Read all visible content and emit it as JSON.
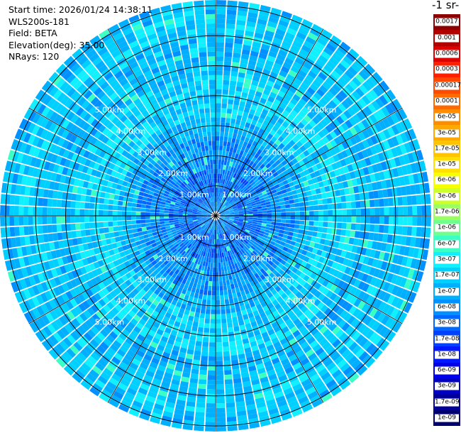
{
  "header": {
    "start_time": "Start time: 2026/01/24 14:38:11",
    "device": "WLS200s-181",
    "field": "Field: BETA",
    "elevation": "Elevation(deg): 35.00",
    "nrays": "NRays: 120"
  },
  "unit_label": "-1 sr-",
  "colorbar": {
    "labels": [
      "0.0017",
      "0.001",
      "0.0006",
      "0.0003",
      "0.00017",
      "0.0001",
      "6e-05",
      "3e-05",
      "1.7e-05",
      "1e-05",
      "6e-06",
      "3e-06",
      "1.7e-06",
      "1e-06",
      "6e-07",
      "3e-07",
      "1.7e-07",
      "1e-07",
      "6e-08",
      "3e-08",
      "1.7e-08",
      "1e-08",
      "6e-09",
      "3e-09",
      "1.7e-09",
      "1e-09"
    ],
    "colors": [
      "#8b0000",
      "#b20000",
      "#dd0000",
      "#ff2000",
      "#ff4800",
      "#ff6a00",
      "#ff8c00",
      "#ffa800",
      "#ffc400",
      "#ffe000",
      "#f5ff00",
      "#cdff2a",
      "#9cff60",
      "#70ff8e",
      "#3bffc4",
      "#10f0ff",
      "#00d0ff",
      "#00b0ff",
      "#0090ff",
      "#0068ff",
      "#0040ff",
      "#0018ff",
      "#0000e8",
      "#0000c0",
      "#000098",
      "#000070"
    ]
  },
  "plot": {
    "range_ring_labels": [
      "1.00km",
      "2.00km",
      "3.00km",
      "4.00km",
      "5.00km"
    ]
  }
}
